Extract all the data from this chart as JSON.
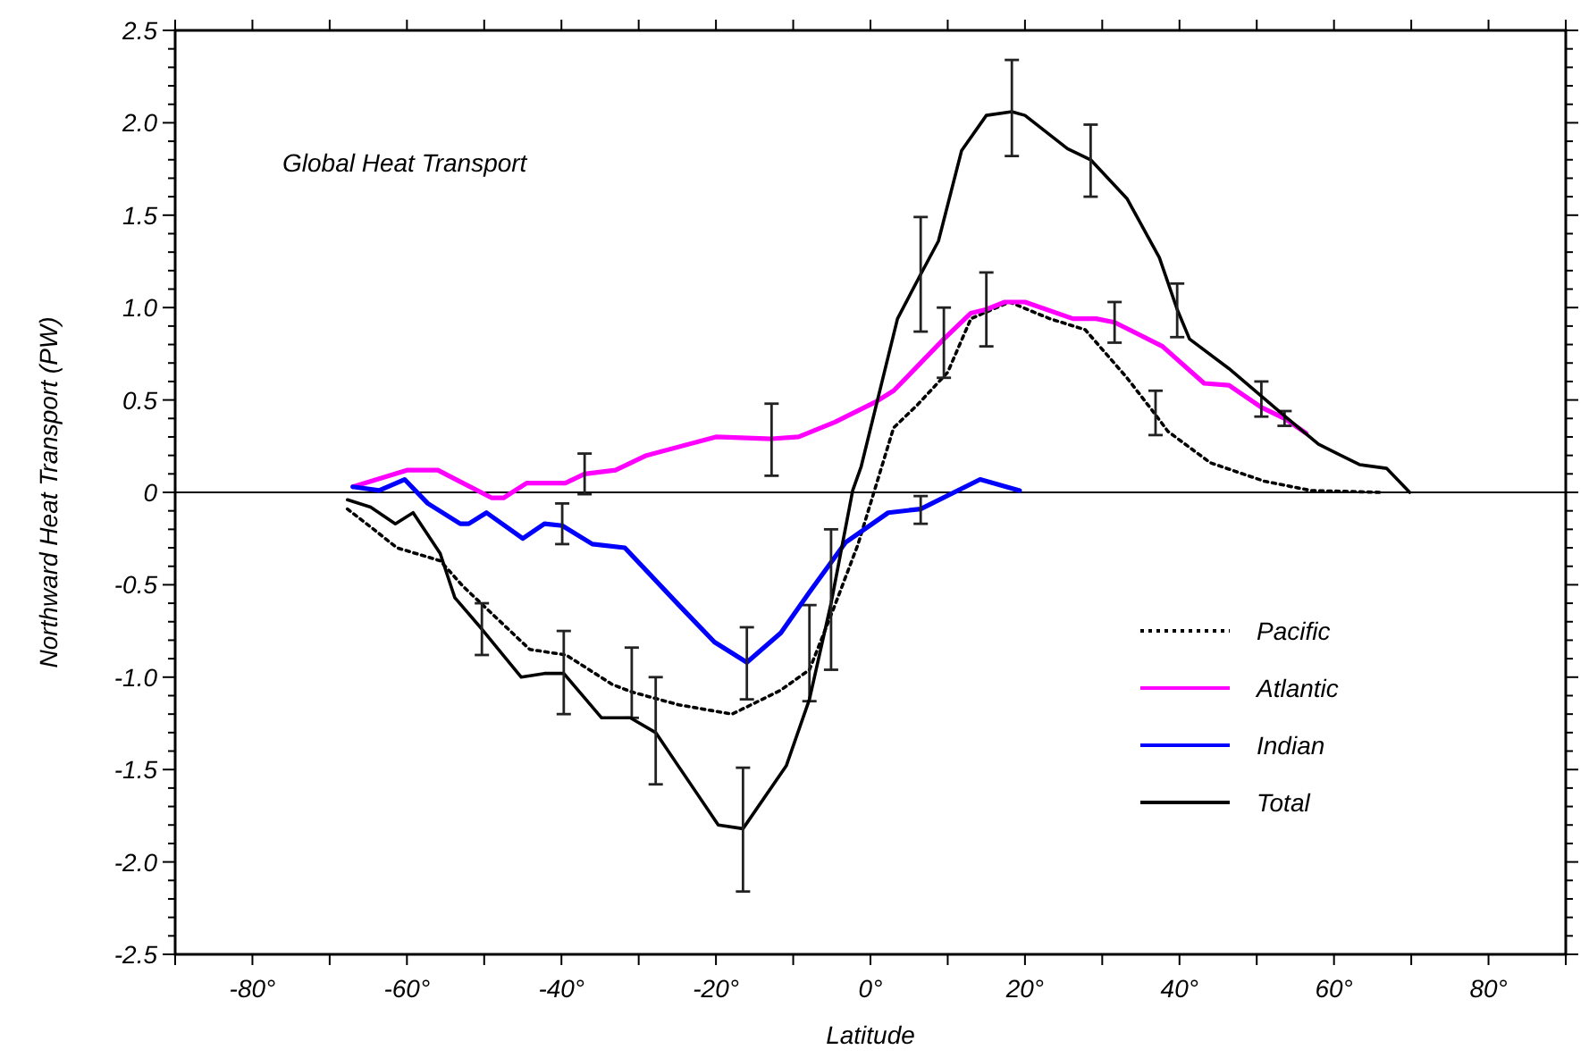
{
  "chart_data": {
    "type": "line",
    "title": "Global Heat Transport",
    "xlabel": "Latitude",
    "ylabel": "Northward Heat Transport (PW)",
    "xlim": [
      -90,
      90
    ],
    "xticks": [
      {
        "value": -90,
        "label": null
      },
      {
        "value": -80,
        "label": "-80°"
      },
      {
        "value": -70,
        "label": null
      },
      {
        "value": -60,
        "label": "-60°"
      },
      {
        "value": -50,
        "label": null
      },
      {
        "value": -40,
        "label": "-40°"
      },
      {
        "value": -30,
        "label": null
      },
      {
        "value": -20,
        "label": "-20°"
      },
      {
        "value": -10,
        "label": null
      },
      {
        "value": 0,
        "label": "0°"
      },
      {
        "value": 10,
        "label": null
      },
      {
        "value": 20,
        "label": "20°"
      },
      {
        "value": 30,
        "label": null
      },
      {
        "value": 40,
        "label": "40°"
      },
      {
        "value": 50,
        "label": null
      },
      {
        "value": 60,
        "label": "60°"
      },
      {
        "value": 70,
        "label": null
      },
      {
        "value": 80,
        "label": "80°"
      },
      {
        "value": 90,
        "label": null
      }
    ],
    "ylim": [
      -2.5,
      2.5
    ],
    "yticks": [
      -2.5,
      {
        "value": -2.4,
        "label": null
      },
      {
        "value": -2.3,
        "label": null
      },
      {
        "value": -2.2,
        "label": null
      },
      {
        "value": -2.1,
        "label": null
      },
      {
        "value": -2,
        "label": "-2.0"
      },
      {
        "value": -1.9,
        "label": null
      },
      {
        "value": -1.8,
        "label": null
      },
      {
        "value": -1.7,
        "label": null
      },
      {
        "value": -1.6,
        "label": null
      },
      -1.5,
      {
        "value": -1.4,
        "label": null
      },
      {
        "value": -1.3,
        "label": null
      },
      {
        "value": -1.2,
        "label": null
      },
      {
        "value": -1.1,
        "label": null
      },
      {
        "value": -1,
        "label": "-1.0"
      },
      {
        "value": -0.9,
        "label": null
      },
      {
        "value": -0.8,
        "label": null
      },
      {
        "value": -0.7,
        "label": null
      },
      {
        "value": -0.6,
        "label": null
      },
      -0.5,
      {
        "value": -0.4,
        "label": null
      },
      {
        "value": -0.3,
        "label": null
      },
      {
        "value": -0.2,
        "label": null
      },
      {
        "value": -0.1,
        "label": null
      },
      0,
      {
        "value": 0.1,
        "label": null
      },
      {
        "value": 0.2,
        "label": null
      },
      {
        "value": 0.3,
        "label": null
      },
      {
        "value": 0.4,
        "label": null
      },
      0.5,
      {
        "value": 0.6,
        "label": null
      },
      {
        "value": 0.7,
        "label": null
      },
      {
        "value": 0.8,
        "label": null
      },
      {
        "value": 0.9,
        "label": null
      },
      {
        "value": 1,
        "label": "1.0"
      },
      {
        "value": 1.1,
        "label": null
      },
      {
        "value": 1.2,
        "label": null
      },
      {
        "value": 1.3,
        "label": null
      },
      {
        "value": 1.4,
        "label": null
      },
      1.5,
      {
        "value": 1.6,
        "label": null
      },
      {
        "value": 1.7,
        "label": null
      },
      {
        "value": 1.8,
        "label": null
      },
      {
        "value": 1.9,
        "label": null
      },
      {
        "value": 2,
        "label": "2.0"
      },
      {
        "value": 2.1,
        "label": null
      },
      {
        "value": 2.2,
        "label": null
      },
      {
        "value": 2.3,
        "label": null
      },
      {
        "value": 2.4,
        "label": null
      },
      2.5
    ],
    "ref_lines": [
      {
        "axis": "y",
        "value": 0,
        "color": "#000000"
      }
    ],
    "legend": "bottom right",
    "grid": false,
    "marker": "none",
    "series": [
      {
        "name": "Pacific",
        "color": "#000000",
        "line_style": "dotted",
        "x": [
          -67.7,
          -64.3,
          -61.3,
          -55.7,
          -52.7,
          -44.1,
          -39.4,
          -33.4,
          -30.9,
          -24.8,
          -17.9,
          -11.6,
          -7.9,
          -4.6,
          -1.6,
          3,
          6,
          10,
          13,
          18,
          23.2,
          27.8,
          33.2,
          36.9,
          38.5,
          44,
          51,
          57,
          66
        ],
        "values": [
          -0.09,
          -0.2,
          -0.3,
          -0.37,
          -0.51,
          -0.85,
          -0.88,
          -1.04,
          -1.08,
          -1.15,
          -1.2,
          -1.07,
          -0.96,
          -0.61,
          -0.28,
          0.35,
          0.47,
          0.65,
          0.94,
          1.03,
          0.94,
          0.88,
          0.62,
          0.42,
          0.33,
          0.16,
          0.06,
          0.01,
          0
        ],
        "errors": [
          null,
          null,
          null,
          null,
          null,
          null,
          null,
          null,
          [
            -1.22,
            -0.84
          ],
          null,
          null,
          null,
          [
            -1.13,
            -0.61
          ],
          null,
          null,
          null,
          null,
          null,
          null,
          null,
          null,
          null,
          null,
          [
            0.31,
            0.55
          ],
          null,
          null,
          null,
          null,
          null
        ]
      },
      {
        "name": "Atlantic",
        "color": "#ff00ff",
        "line_style": "solid",
        "x": [
          -67,
          -60,
          -56,
          -49,
          -47.5,
          -44.5,
          -39.5,
          -37,
          -33,
          -29,
          -20,
          -12.8,
          -9.3,
          -4.6,
          0.7,
          3,
          9.5,
          13,
          15,
          17.4,
          20,
          26.2,
          29.2,
          31.6,
          37.8,
          43.2,
          46.4,
          50.6,
          53.6,
          56.4
        ],
        "values": [
          0.03,
          0.12,
          0.12,
          -0.03,
          -0.03,
          0.05,
          0.05,
          0.1,
          0.12,
          0.2,
          0.3,
          0.29,
          0.3,
          0.38,
          0.49,
          0.55,
          0.83,
          0.97,
          0.99,
          1.03,
          1.03,
          0.94,
          0.94,
          0.92,
          0.79,
          0.59,
          0.58,
          0.46,
          0.4,
          0.32
        ],
        "errors": [
          null,
          null,
          null,
          null,
          null,
          null,
          null,
          [
            -0.01,
            0.21
          ],
          null,
          null,
          null,
          [
            0.09,
            0.48
          ],
          null,
          null,
          null,
          null,
          [
            0.62,
            1.0
          ],
          null,
          [
            0.79,
            1.19
          ],
          null,
          null,
          null,
          null,
          [
            0.81,
            1.03
          ],
          null,
          null,
          null,
          [
            0.41,
            0.6
          ],
          [
            0.36,
            0.44
          ],
          null
        ]
      },
      {
        "name": "Indian",
        "color": "#0000ff",
        "line_style": "solid",
        "x": [
          -67,
          -63.6,
          -60.3,
          -57.3,
          -53.1,
          -52,
          -49.7,
          -45,
          -42.2,
          -39.9,
          -36,
          -31.8,
          -24.8,
          -20.2,
          -16,
          -11.6,
          -7.9,
          -3.2,
          2.3,
          6.5,
          14.2,
          19.3
        ],
        "values": [
          0.03,
          0.01,
          0.07,
          -0.06,
          -0.17,
          -0.17,
          -0.11,
          -0.25,
          -0.17,
          -0.18,
          -0.28,
          -0.3,
          -0.61,
          -0.81,
          -0.92,
          -0.76,
          -0.54,
          -0.27,
          -0.11,
          -0.09,
          0.07,
          0.01
        ],
        "errors": [
          null,
          null,
          null,
          null,
          null,
          null,
          null,
          null,
          null,
          [
            -0.28,
            -0.06
          ],
          null,
          null,
          null,
          null,
          [
            -1.12,
            -0.73
          ],
          null,
          null,
          null,
          null,
          [
            -0.17,
            -0.02
          ],
          null,
          null
        ]
      },
      {
        "name": "Total",
        "color": "#000000",
        "line_style": "solid",
        "x": [
          -67.7,
          -64.7,
          -61.5,
          -59.2,
          -55.7,
          -53.8,
          -50.3,
          -45.2,
          -42.2,
          -39.7,
          -34.8,
          -31.1,
          -27.8,
          -19.7,
          -16.5,
          -10.9,
          -7.9,
          -5.1,
          -2.3,
          -1.2,
          3.5,
          6.5,
          8.8,
          11.8,
          15,
          18.3,
          20,
          25.5,
          28.5,
          33.2,
          37.4,
          39.7,
          41.3,
          46.4,
          54,
          58,
          63.3,
          66.8,
          69.8
        ],
        "values": [
          -0.04,
          -0.08,
          -0.17,
          -0.11,
          -0.33,
          -0.57,
          -0.74,
          -1.0,
          -0.98,
          -0.98,
          -1.22,
          -1.22,
          -1.3,
          -1.8,
          -1.82,
          -1.48,
          -1.12,
          -0.6,
          0.01,
          0.14,
          0.94,
          1.18,
          1.36,
          1.85,
          2.04,
          2.06,
          2.04,
          1.86,
          1.8,
          1.59,
          1.27,
          0.99,
          0.83,
          0.67,
          0.4,
          0.26,
          0.15,
          0.13,
          0
        ],
        "errors": [
          null,
          null,
          null,
          null,
          null,
          null,
          [
            -0.88,
            -0.6
          ],
          null,
          null,
          [
            -1.2,
            -0.75
          ],
          null,
          null,
          [
            -1.58,
            -1.0
          ],
          null,
          [
            -2.16,
            -1.49
          ],
          null,
          null,
          [
            -0.96,
            -0.2
          ],
          null,
          null,
          null,
          [
            0.87,
            1.49
          ],
          null,
          null,
          null,
          [
            1.82,
            2.34
          ],
          null,
          null,
          [
            1.6,
            1.99
          ],
          null,
          null,
          [
            0.84,
            1.13
          ],
          null,
          null,
          null,
          null,
          null,
          null,
          null
        ]
      }
    ]
  }
}
